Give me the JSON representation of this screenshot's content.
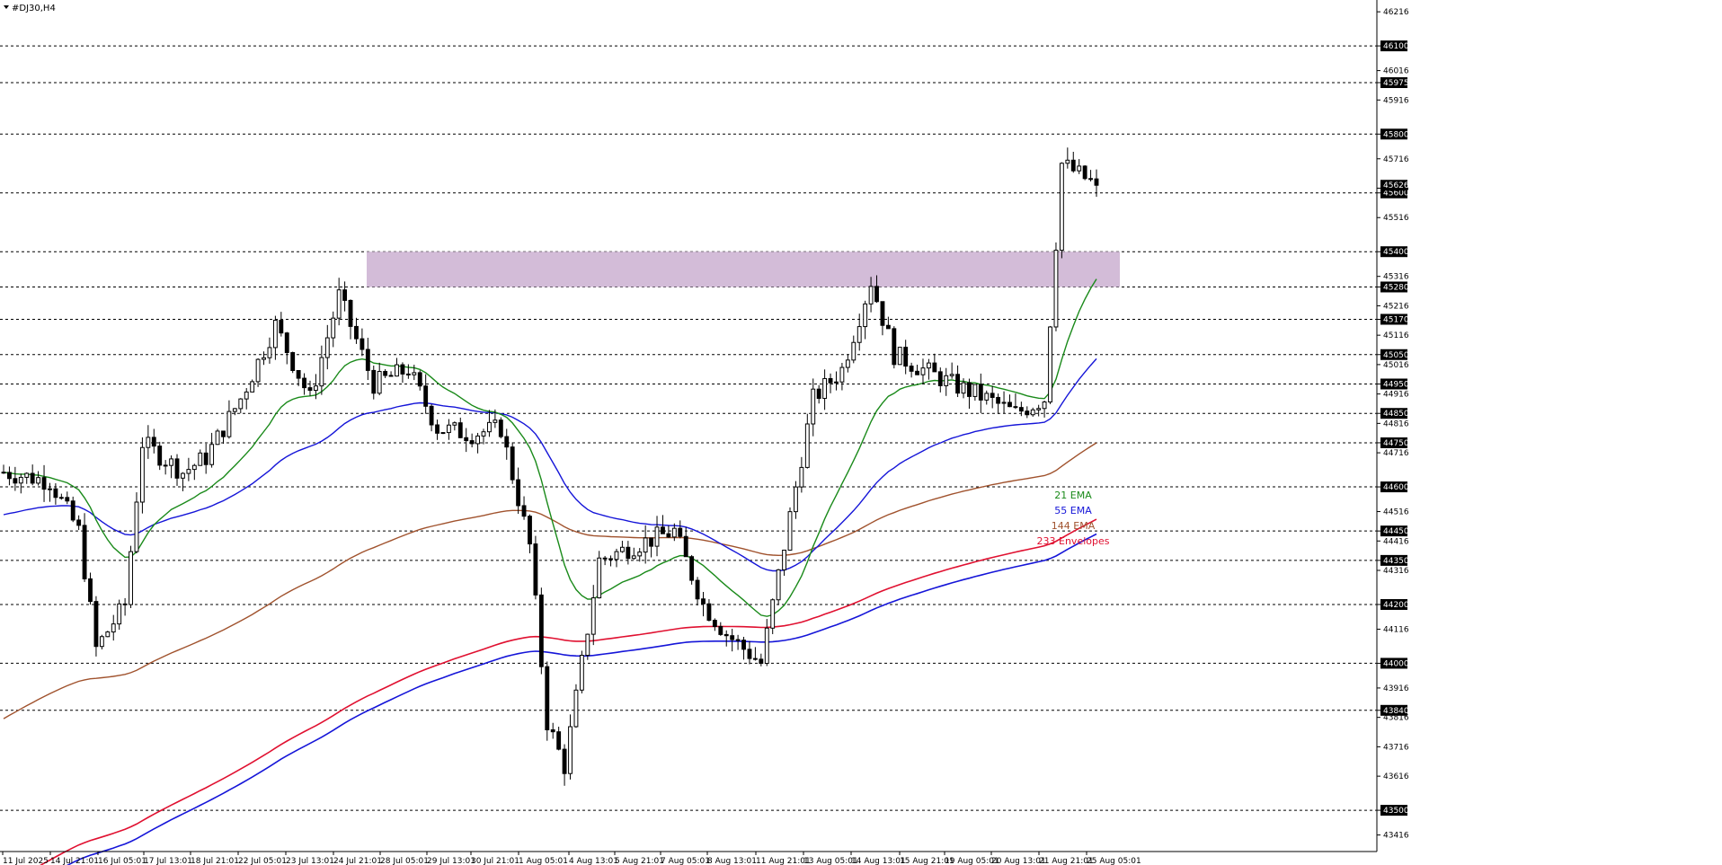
{
  "chart_data": {
    "type": "candlestick",
    "title": "#DJ30,H4",
    "ylim": [
      43375,
      46250
    ],
    "y_ticks": [
      46216,
      46100,
      46016,
      45975,
      45916,
      45800,
      45716,
      45616,
      45600,
      45516,
      45400,
      45316,
      45280,
      45216,
      45170,
      45116,
      45050,
      45016,
      44950,
      44916,
      44850,
      44816,
      44750,
      44716,
      44600,
      44516,
      44450,
      44416,
      44350,
      44316,
      44200,
      44116,
      44000,
      43916,
      43840,
      43816,
      43716,
      43616,
      43500,
      43416
    ],
    "horizontal_levels": [
      46100,
      45975,
      45800,
      45600,
      45400,
      45280,
      45170,
      45050,
      44950,
      44850,
      44750,
      44600,
      44450,
      44350,
      44200,
      44000,
      43840,
      43500
    ],
    "current_price": 45626,
    "resistance_zone": {
      "from": 45280,
      "to": 45400
    },
    "x_ticks": [
      "11 Jul 2025",
      "14 Jul 21:01",
      "16 Jul 05:01",
      "17 Jul 13:01",
      "18 Jul 21:01",
      "22 Jul 05:01",
      "23 Jul 13:01",
      "24 Jul 21:01",
      "28 Jul 05:01",
      "29 Jul 13:01",
      "30 Jul 21:01",
      "1 Aug 05:01",
      "4 Aug 13:01",
      "5 Aug 21:01",
      "7 Aug 05:01",
      "8 Aug 13:01",
      "11 Aug 21:01",
      "13 Aug 05:01",
      "14 Aug 13:01",
      "15 Aug 21:01",
      "19 Aug 05:01",
      "20 Aug 13:01",
      "21 Aug 21:01",
      "25 Aug 05:01"
    ],
    "legend": [
      {
        "label": "21 EMA",
        "color": "#1a8a1a"
      },
      {
        "label": "55 EMA",
        "color": "#1515d8"
      },
      {
        "label": "144 EMA",
        "color": "#a0522d"
      },
      {
        "label": "233 Envelopes",
        "color": "#e01030"
      }
    ],
    "anchors": [
      [
        0,
        44650
      ],
      [
        8,
        44620
      ],
      [
        13,
        44450
      ],
      [
        16,
        44050
      ],
      [
        21,
        44200
      ],
      [
        24,
        44750
      ],
      [
        31,
        44650
      ],
      [
        35,
        44700
      ],
      [
        41,
        44900
      ],
      [
        47,
        45150
      ],
      [
        53,
        44900
      ],
      [
        58,
        45250
      ],
      [
        64,
        44950
      ],
      [
        70,
        45000
      ],
      [
        75,
        44800
      ],
      [
        81,
        44780
      ],
      [
        86,
        44800
      ],
      [
        91,
        44400
      ],
      [
        94,
        43800
      ],
      [
        97,
        43650
      ],
      [
        103,
        44350
      ],
      [
        109,
        44400
      ],
      [
        116,
        44450
      ],
      [
        121,
        44200
      ],
      [
        125,
        44100
      ],
      [
        131,
        44000
      ],
      [
        134,
        44300
      ],
      [
        140,
        44900
      ],
      [
        145,
        45000
      ],
      [
        150,
        45300
      ],
      [
        154,
        45050
      ],
      [
        159,
        45000
      ],
      [
        164,
        44950
      ],
      [
        170,
        44900
      ],
      [
        175,
        44850
      ],
      [
        180,
        44900
      ],
      [
        183,
        45700
      ],
      [
        187,
        45650
      ],
      [
        189,
        45626
      ]
    ]
  },
  "colors": {
    "bull_fill": "#ffffff",
    "bear_fill": "#000000",
    "grid": "#000000",
    "zone": "#d3bcd8",
    "axis_label_bg": "#000000"
  }
}
